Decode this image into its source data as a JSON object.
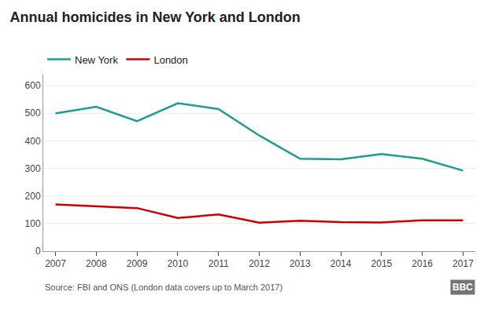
{
  "chart_data": {
    "type": "line",
    "title": "Annual homicides in New York and London",
    "x": [
      2007,
      2008,
      2009,
      2010,
      2011,
      2012,
      2013,
      2014,
      2015,
      2016,
      2017
    ],
    "series": [
      {
        "name": "New York",
        "color": "#1a9e8f",
        "values": [
          499,
          523,
          471,
          536,
          515,
          419,
          335,
          333,
          352,
          335,
          292
        ]
      },
      {
        "name": "London",
        "color": "#cc0000",
        "values": [
          169,
          163,
          156,
          120,
          133,
          103,
          110,
          105,
          104,
          112,
          112
        ]
      }
    ],
    "xlim": [
      2006.7,
      2017.3
    ],
    "xticks": [
      2007,
      2008,
      2009,
      2010,
      2011,
      2012,
      2013,
      2014,
      2015,
      2016,
      2017
    ],
    "ylim": [
      0,
      640
    ],
    "yticks": [
      0,
      100,
      200,
      300,
      400,
      500,
      600
    ],
    "grid": true,
    "legend": "top",
    "annotations": [
      "Source: FBI and ONS (London data covers up to March 2017)",
      "BBC"
    ]
  }
}
